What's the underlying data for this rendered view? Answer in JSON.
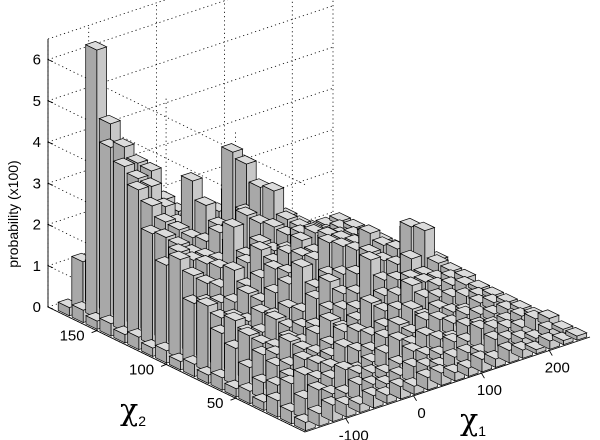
{
  "chart_data": {
    "type": "bar3d",
    "zlabel": "probability (x100)",
    "xlabel": {
      "symbol": "χ",
      "subscript": "1"
    },
    "ylabel": {
      "symbol": "χ",
      "subscript": "2"
    },
    "x_ticks": [
      -100,
      0,
      100,
      200
    ],
    "y_ticks": [
      50,
      100,
      150
    ],
    "z_ticks": [
      0,
      1,
      2,
      3,
      4,
      5,
      6
    ],
    "xlim": [
      -160,
      260
    ],
    "ylim": [
      0,
      185
    ],
    "zlim": [
      0,
      6.5
    ],
    "grid": true,
    "bar_color": "#c0c0c0",
    "x_bins": [
      -150,
      -130,
      -110,
      -90,
      -70,
      -50,
      -30,
      -10,
      10,
      30,
      50,
      70,
      90,
      110,
      130,
      150,
      170,
      190,
      210,
      230,
      250
    ],
    "y_bins": [
      5,
      15,
      25,
      35,
      45,
      55,
      65,
      75,
      85,
      95,
      105,
      115,
      125,
      135,
      145,
      155,
      165,
      175
    ],
    "values": [
      [
        0.2,
        0.3,
        0.4,
        0.3,
        0.2,
        0.3,
        0.2,
        0.3,
        0.2,
        0.3,
        0.3,
        0.2,
        0.2,
        0.3,
        0.2,
        0.3,
        0.2,
        0.1,
        0.2,
        0.1,
        0.1
      ],
      [
        0.3,
        0.5,
        0.6,
        0.4,
        0.3,
        0.4,
        0.3,
        0.2,
        0.3,
        0.4,
        0.3,
        0.2,
        0.3,
        0.3,
        0.2,
        0.4,
        0.3,
        0.2,
        0.1,
        0.2,
        0.1
      ],
      [
        0.4,
        0.7,
        0.8,
        0.6,
        0.5,
        0.6,
        0.4,
        0.3,
        0.2,
        0.3,
        0.5,
        0.3,
        0.2,
        0.4,
        0.3,
        0.5,
        0.4,
        0.3,
        0.2,
        0.3,
        0.2
      ],
      [
        0.2,
        0.5,
        0.6,
        0.9,
        0.7,
        0.5,
        0.3,
        0.2,
        0.3,
        0.4,
        0.6,
        0.4,
        0.5,
        0.3,
        0.2,
        0.4,
        0.3,
        0.2,
        0.2,
        0.2,
        0.1
      ],
      [
        0.3,
        0.4,
        0.7,
        0.6,
        0.5,
        0.4,
        0.5,
        0.6,
        0.4,
        0.3,
        0.5,
        0.7,
        0.4,
        0.6,
        0.5,
        0.3,
        0.4,
        0.3,
        0.2,
        0.2,
        0.1
      ],
      [
        0.2,
        0.6,
        0.8,
        0.7,
        0.9,
        0.6,
        0.4,
        0.5,
        0.7,
        0.6,
        0.4,
        0.5,
        0.8,
        0.7,
        0.4,
        0.5,
        0.3,
        0.2,
        0.3,
        0.2,
        0.1
      ],
      [
        0.3,
        0.9,
        1.1,
        0.8,
        0.6,
        0.7,
        0.5,
        0.6,
        0.8,
        0.5,
        0.6,
        0.9,
        0.6,
        0.5,
        1.0,
        0.6,
        0.5,
        0.4,
        0.3,
        0.2,
        0.1
      ],
      [
        0.2,
        1.1,
        1.3,
        0.9,
        0.8,
        1.0,
        0.7,
        0.6,
        0.5,
        0.8,
        0.7,
        0.6,
        0.5,
        0.7,
        0.6,
        0.9,
        0.7,
        0.5,
        0.4,
        0.3,
        0.1
      ],
      [
        0.3,
        1.6,
        1.2,
        1.1,
        0.9,
        1.0,
        0.8,
        0.9,
        0.7,
        0.9,
        1.2,
        0.8,
        0.7,
        1.4,
        0.8,
        0.7,
        1.1,
        0.6,
        0.4,
        0.3,
        0.2
      ],
      [
        0.2,
        1.5,
        1.4,
        1.3,
        1.2,
        1.3,
        1.0,
        1.1,
        1.2,
        1.5,
        0.9,
        1.1,
        1.0,
        0.9,
        1.3,
        1.0,
        0.8,
        1.6,
        1.4,
        0.5,
        0.2
      ],
      [
        0.3,
        2.4,
        1.9,
        1.6,
        1.4,
        1.7,
        1.2,
        1.3,
        1.4,
        1.2,
        1.5,
        1.3,
        1.6,
        1.4,
        1.2,
        1.5,
        1.1,
        0.9,
        1.2,
        0.6,
        0.3
      ],
      [
        0.2,
        2.1,
        2.3,
        2.0,
        1.8,
        1.6,
        1.4,
        1.5,
        1.7,
        1.3,
        1.4,
        1.6,
        1.2,
        1.5,
        1.3,
        1.1,
        1.0,
        0.7,
        0.5,
        0.4,
        0.2
      ],
      [
        0.3,
        2.7,
        2.5,
        2.2,
        1.9,
        1.7,
        1.5,
        2.2,
        1.4,
        1.6,
        1.3,
        1.2,
        1.5,
        1.4,
        1.1,
        0.9,
        0.7,
        0.6,
        0.4,
        0.3,
        0.2
      ],
      [
        0.2,
        3.6,
        3.1,
        2.6,
        2.3,
        2.0,
        1.8,
        1.9,
        1.5,
        2.1,
        1.8,
        1.6,
        1.3,
        1.2,
        1.0,
        0.8,
        0.6,
        0.5,
        0.4,
        0.2,
        0.1
      ],
      [
        0.3,
        4.0,
        3.6,
        3.3,
        2.7,
        2.2,
        3.1,
        2.4,
        1.8,
        1.6,
        1.9,
        2.4,
        2.2,
        1.4,
        1.1,
        0.9,
        0.7,
        0.4,
        0.3,
        0.2,
        0.1
      ],
      [
        0.2,
        4.3,
        4.2,
        3.7,
        3.4,
        2.6,
        2.2,
        1.9,
        1.7,
        1.5,
        3.2,
        2.8,
        2.1,
        1.6,
        1.2,
        0.9,
        0.6,
        0.4,
        0.3,
        0.2,
        0.1
      ],
      [
        0.3,
        6.5,
        4.6,
        3.9,
        2.9,
        2.4,
        1.8,
        1.6,
        1.5,
        1.3,
        1.6,
        1.9,
        1.7,
        1.4,
        1.1,
        0.8,
        0.5,
        0.4,
        0.2,
        0.2,
        0.1
      ],
      [
        0.2,
        1.2,
        1.0,
        0.9,
        0.8,
        0.7,
        0.6,
        0.5,
        0.5,
        0.4,
        0.5,
        0.6,
        0.5,
        0.4,
        0.3,
        0.3,
        0.2,
        0.2,
        0.1,
        0.1,
        0.1
      ]
    ]
  }
}
